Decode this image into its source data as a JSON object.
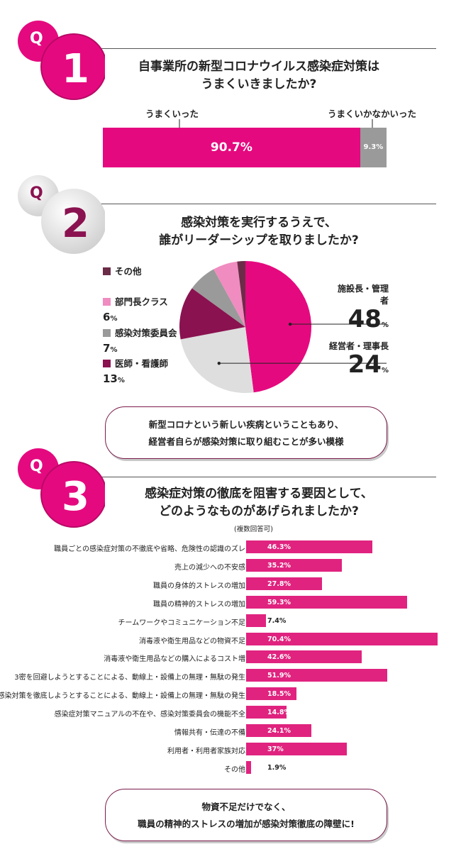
{
  "colors": {
    "magenta": "#e5097f",
    "dark_magenta": "#8a1250",
    "pink": "#f08cc0",
    "gray": "#9a9a9a",
    "light_gray": "#dedede",
    "plum": "#6b2c48",
    "bar": "#e0237f"
  },
  "q1": {
    "badge_letter": "Q",
    "badge_number": "1",
    "title_line1": "自事業所の新型コロナウイルス感染症対策は",
    "title_line2": "うまくいきましたか?"
  },
  "q2": {
    "badge_letter": "Q",
    "badge_number": "2",
    "title_line1": "感染対策を実行するうえで、",
    "title_line2": "誰がリーダーシップを取りましたか?",
    "callout_line1": "新型コロナという新しい疾病ということもあり、",
    "callout_line2": "経営者自らが感染対策に取り組むことが多い模様"
  },
  "q3": {
    "badge_letter": "Q",
    "badge_number": "3",
    "title_line1": "感染症対策の徹底を阻害する要因として、",
    "title_line2": "どのようなものがあげられましたか?",
    "note": "(複数回答可)",
    "callout_line1": "物資不足だけでなく、",
    "callout_line2": "職員の精神的ストレスの増加が感染対策徹底の障壁に!"
  },
  "chart_data": [
    {
      "type": "bar",
      "orientation": "horizontal-stacked",
      "categories": [
        "うまくいった",
        "うまくいかなかいった"
      ],
      "values": [
        90.7,
        9.3
      ],
      "labels": [
        "90.7%",
        "9.3%"
      ]
    },
    {
      "type": "pie",
      "categories": [
        "施設長・管理者",
        "経営者・理事長",
        "医師・看護師",
        "感染対策委員会",
        "部門長クラス",
        "その他"
      ],
      "values": [
        48,
        24,
        13,
        7,
        6,
        2
      ],
      "labels": [
        "48",
        "24",
        "13",
        "7",
        "6",
        ""
      ],
      "unit": "%"
    },
    {
      "type": "bar",
      "orientation": "horizontal",
      "categories": [
        "職員ごとの感染症対策の不徹底や省略、危険性の認識のズレ",
        "売上の減少への不安感",
        "職員の身体的ストレスの増加",
        "職員の精神的ストレスの増加",
        "チームワークやコミュニケーション不足",
        "消毒液や衛生用品などの物資不足",
        "消毒液や衛生用品などの購入によるコスト増",
        "3密を回避しようとすることによる、動線上・設備上の無理・無駄の発生",
        "感染対策を徹底しようとすることによる、動線上・設備上の無理・無駄の発生",
        "感染症対策マニュアルの不在や、感染対策委員会の機能不全",
        "情報共有・伝達の不備",
        "利用者・利用者家族対応",
        "その他"
      ],
      "values": [
        46.3,
        35.2,
        27.8,
        59.3,
        7.4,
        70.4,
        42.6,
        51.9,
        18.5,
        14.8,
        24.1,
        37,
        1.9
      ],
      "labels": [
        "46.3%",
        "35.2%",
        "27.8%",
        "59.3%",
        "7.4%",
        "70.4%",
        "42.6%",
        "51.9%",
        "18.5%",
        "14.8%",
        "24.1%",
        "37%",
        "1.9%"
      ],
      "xlim": [
        0,
        70.4
      ]
    }
  ]
}
